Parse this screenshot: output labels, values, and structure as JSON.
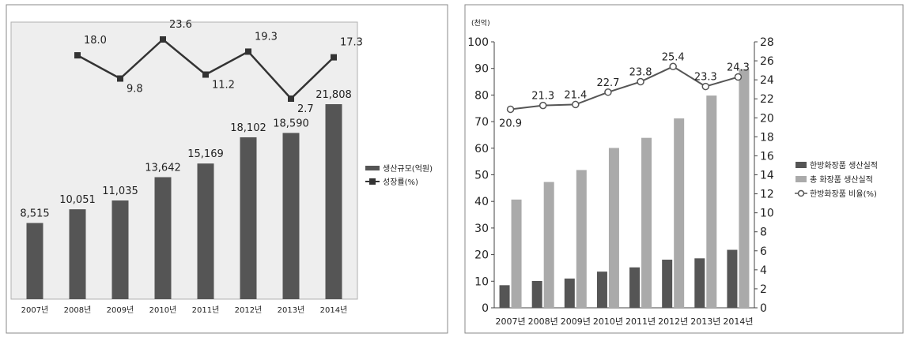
{
  "chart_data": [
    {
      "type": "bar",
      "categories": [
        "2007년",
        "2008년",
        "2009년",
        "2010년",
        "2011년",
        "2012년",
        "2013년",
        "2014년"
      ],
      "series": [
        {
          "name": "생산규모(억원)",
          "type": "bar",
          "values": [
            8515,
            10051,
            11035,
            13642,
            15169,
            18102,
            18590,
            21808
          ],
          "labels": [
            "8,515",
            "10,051",
            "11,035",
            "13,642",
            "15,169",
            "18,102",
            "18,590",
            "21,808"
          ],
          "color": "#555555"
        },
        {
          "name": "성장률(%)",
          "type": "line",
          "values": [
            null,
            18.0,
            9.8,
            23.6,
            11.2,
            19.3,
            2.7,
            17.3
          ],
          "labels": [
            "",
            "18.0",
            "9.8",
            "23.6",
            "11.2",
            "19.3",
            "2.7",
            "17.3"
          ],
          "color": "#333333",
          "marker": "square"
        }
      ],
      "legend": "right",
      "background": "#eeeeee"
    },
    {
      "type": "bar",
      "unit_label": "(천억)",
      "categories": [
        "2007년",
        "2008년",
        "2009년",
        "2010년",
        "2011년",
        "2012년",
        "2013년",
        "2014년"
      ],
      "y_left": {
        "min": 0,
        "max": 100,
        "step": 10,
        "ticks": [
          "0",
          "10",
          "20",
          "30",
          "40",
          "50",
          "60",
          "70",
          "80",
          "90",
          "100"
        ]
      },
      "y_right": {
        "min": 0,
        "max": 28,
        "step": 2,
        "ticks": [
          "0",
          "2",
          "4",
          "6",
          "8",
          "10",
          "12",
          "14",
          "16",
          "18",
          "20",
          "22",
          "24",
          "26",
          "28"
        ]
      },
      "series": [
        {
          "name": "한방화장품 생산실적",
          "type": "bar",
          "axis": "left",
          "values": [
            8.5,
            10.1,
            11.0,
            13.6,
            15.2,
            18.1,
            18.6,
            21.8
          ],
          "color": "#555555"
        },
        {
          "name": "총 화장품 생산실적",
          "type": "bar",
          "axis": "left",
          "values": [
            40.7,
            47.3,
            51.8,
            60.1,
            63.9,
            71.2,
            79.8,
            89.7
          ],
          "color": "#aaaaaa"
        },
        {
          "name": "한방화장품 비율(%)",
          "type": "line",
          "axis": "right",
          "values": [
            20.9,
            21.3,
            21.4,
            22.7,
            23.8,
            25.4,
            23.3,
            24.3
          ],
          "labels": [
            "20.9",
            "21.3",
            "21.4",
            "22.7",
            "23.8",
            "25.4",
            "23.3",
            "24.3"
          ],
          "color": "#555555",
          "marker": "circle"
        }
      ],
      "legend": "right"
    }
  ]
}
